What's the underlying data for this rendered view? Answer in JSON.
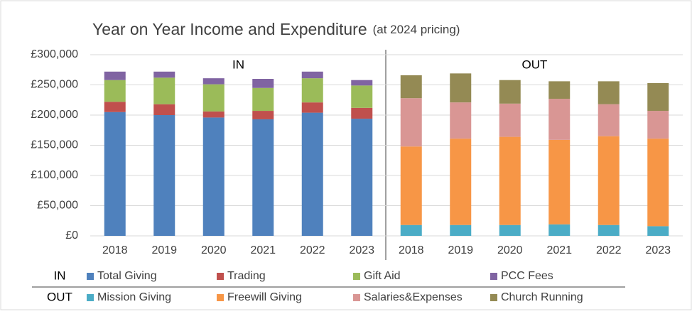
{
  "chart_data": {
    "type": "stacked_bar",
    "title": "Year on Year Income and Expenditure",
    "subtitle": "(at 2024 pricing)",
    "categories": [
      "2018",
      "2019",
      "2020",
      "2021",
      "2022",
      "2023",
      "2018",
      "2019",
      "2020",
      "2021",
      "2022",
      "2023"
    ],
    "ylim": [
      0,
      300000
    ],
    "yticks": [
      {
        "value": 0,
        "label": "£0"
      },
      {
        "value": 50000,
        "label": "£50,000"
      },
      {
        "value": 100000,
        "label": "£100,000"
      },
      {
        "value": 150000,
        "label": "£150,000"
      },
      {
        "value": 200000,
        "label": "£200,000"
      },
      {
        "value": 250000,
        "label": "£250,000"
      },
      {
        "value": 300000,
        "label": "£300,000"
      }
    ],
    "grid": true,
    "groups": [
      {
        "name": "IN",
        "series": [
          {
            "name": "Total Giving",
            "color": "#4f81bd",
            "values": [
              205000,
              200000,
              196000,
              193000,
              204000,
              194000,
              null,
              null,
              null,
              null,
              null,
              null
            ]
          },
          {
            "name": "Trading",
            "color": "#c0504d",
            "values": [
              17000,
              18000,
              10000,
              14000,
              17000,
              18000,
              null,
              null,
              null,
              null,
              null,
              null
            ]
          },
          {
            "name": "Gift Aid",
            "color": "#9bbb59",
            "values": [
              36000,
              44000,
              45000,
              38000,
              40000,
              37000,
              null,
              null,
              null,
              null,
              null,
              null
            ]
          },
          {
            "name": "PCC Fees",
            "color": "#8064a2",
            "values": [
              14000,
              10000,
              10000,
              15000,
              11000,
              9000,
              null,
              null,
              null,
              null,
              null,
              null
            ]
          }
        ]
      },
      {
        "name": "OUT",
        "series": [
          {
            "name": "Mission Giving",
            "color": "#4bacc6",
            "values": [
              null,
              null,
              null,
              null,
              null,
              null,
              18000,
              18000,
              18000,
              19000,
              18000,
              16000
            ]
          },
          {
            "name": "Freewill Giving",
            "color": "#f79646",
            "values": [
              null,
              null,
              null,
              null,
              null,
              null,
              130000,
              143000,
              146000,
              140000,
              147000,
              145000
            ]
          },
          {
            "name": "Salaries&Expenses",
            "color": "#d99694",
            "values": [
              null,
              null,
              null,
              null,
              null,
              null,
              80000,
              60000,
              55000,
              68000,
              53000,
              46000
            ]
          },
          {
            "name": "Church Running",
            "color": "#948a54",
            "values": [
              null,
              null,
              null,
              null,
              null,
              null,
              38000,
              48000,
              39000,
              29000,
              38000,
              46000
            ]
          }
        ]
      }
    ]
  }
}
